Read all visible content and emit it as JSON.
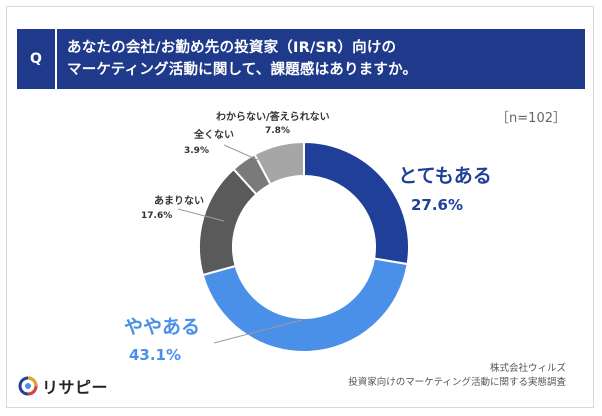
{
  "question": {
    "marker": "Q",
    "line1": "あなたの会社/お勤め先の投資家（IR/SR）向けの",
    "line2": "マーケティング活動に関して、課題感はありますか。"
  },
  "sample_size": "［n=102］",
  "chart_data": {
    "type": "pie",
    "donut": true,
    "title": "",
    "slices": [
      {
        "label": "とてもある",
        "value_label": "27.6%",
        "value": 27.6,
        "color": "#1f3f99"
      },
      {
        "label": "ややある",
        "value_label": "43.1%",
        "value": 43.1,
        "color": "#4a90e8"
      },
      {
        "label": "あまりない",
        "value_label": "17.6%",
        "value": 17.6,
        "color": "#5a5a5a"
      },
      {
        "label": "全くない",
        "value_label": "3.9%",
        "value": 3.9,
        "color": "#7a7a7a"
      },
      {
        "label": "わからない/答えられない",
        "value_label": "7.8%",
        "value": 7.8,
        "color": "#a6a6a6"
      }
    ]
  },
  "logo": {
    "text": "リサピー"
  },
  "source": {
    "line1": "株式会社ウィルズ",
    "line2": "投資家向けのマーケティング活動に関する実態調査"
  }
}
